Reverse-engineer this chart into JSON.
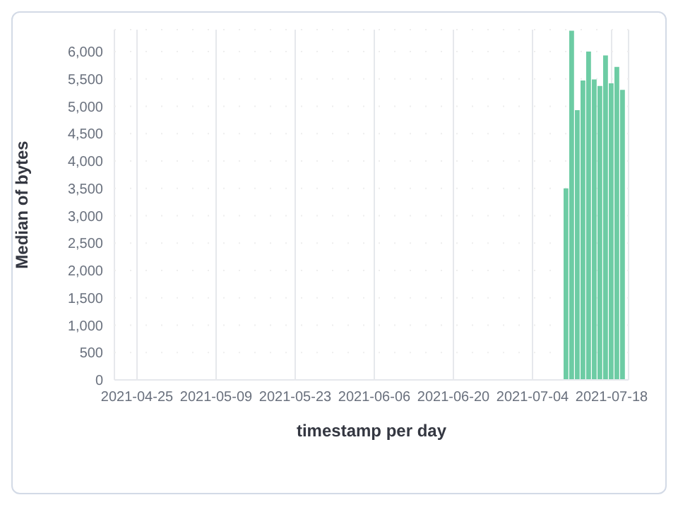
{
  "chart_data": {
    "type": "bar",
    "xlabel": "timestamp per day",
    "ylabel": "Median of bytes",
    "x": [
      "2021-07-10",
      "2021-07-11",
      "2021-07-12",
      "2021-07-13",
      "2021-07-14",
      "2021-07-15",
      "2021-07-16",
      "2021-07-17",
      "2021-07-18",
      "2021-07-19",
      "2021-07-20"
    ],
    "values": [
      3500,
      6380,
      4930,
      5470,
      6000,
      5490,
      5370,
      5930,
      5420,
      5720,
      5300
    ],
    "color": "#6dcca4",
    "xlim": [
      "2021-04-21",
      "2021-07-21"
    ],
    "xticks": [
      "2021-04-25",
      "2021-05-09",
      "2021-05-23",
      "2021-06-06",
      "2021-06-20",
      "2021-07-04",
      "2021-07-18"
    ],
    "ylim": [
      0,
      6400
    ],
    "yticks": [
      {
        "value": 0,
        "label": "0"
      },
      {
        "value": 500,
        "label": "500"
      },
      {
        "value": 1000,
        "label": "1,000"
      },
      {
        "value": 1500,
        "label": "1,500"
      },
      {
        "value": 2000,
        "label": "2,000"
      },
      {
        "value": 2500,
        "label": "2,500"
      },
      {
        "value": 3000,
        "label": "3,000"
      },
      {
        "value": 3500,
        "label": "3,500"
      },
      {
        "value": 4000,
        "label": "4,000"
      },
      {
        "value": 4500,
        "label": "4,500"
      },
      {
        "value": 5000,
        "label": "5,000"
      },
      {
        "value": 5500,
        "label": "5,500"
      },
      {
        "value": 6000,
        "label": "6,000"
      }
    ],
    "grid": true,
    "legend": false
  }
}
